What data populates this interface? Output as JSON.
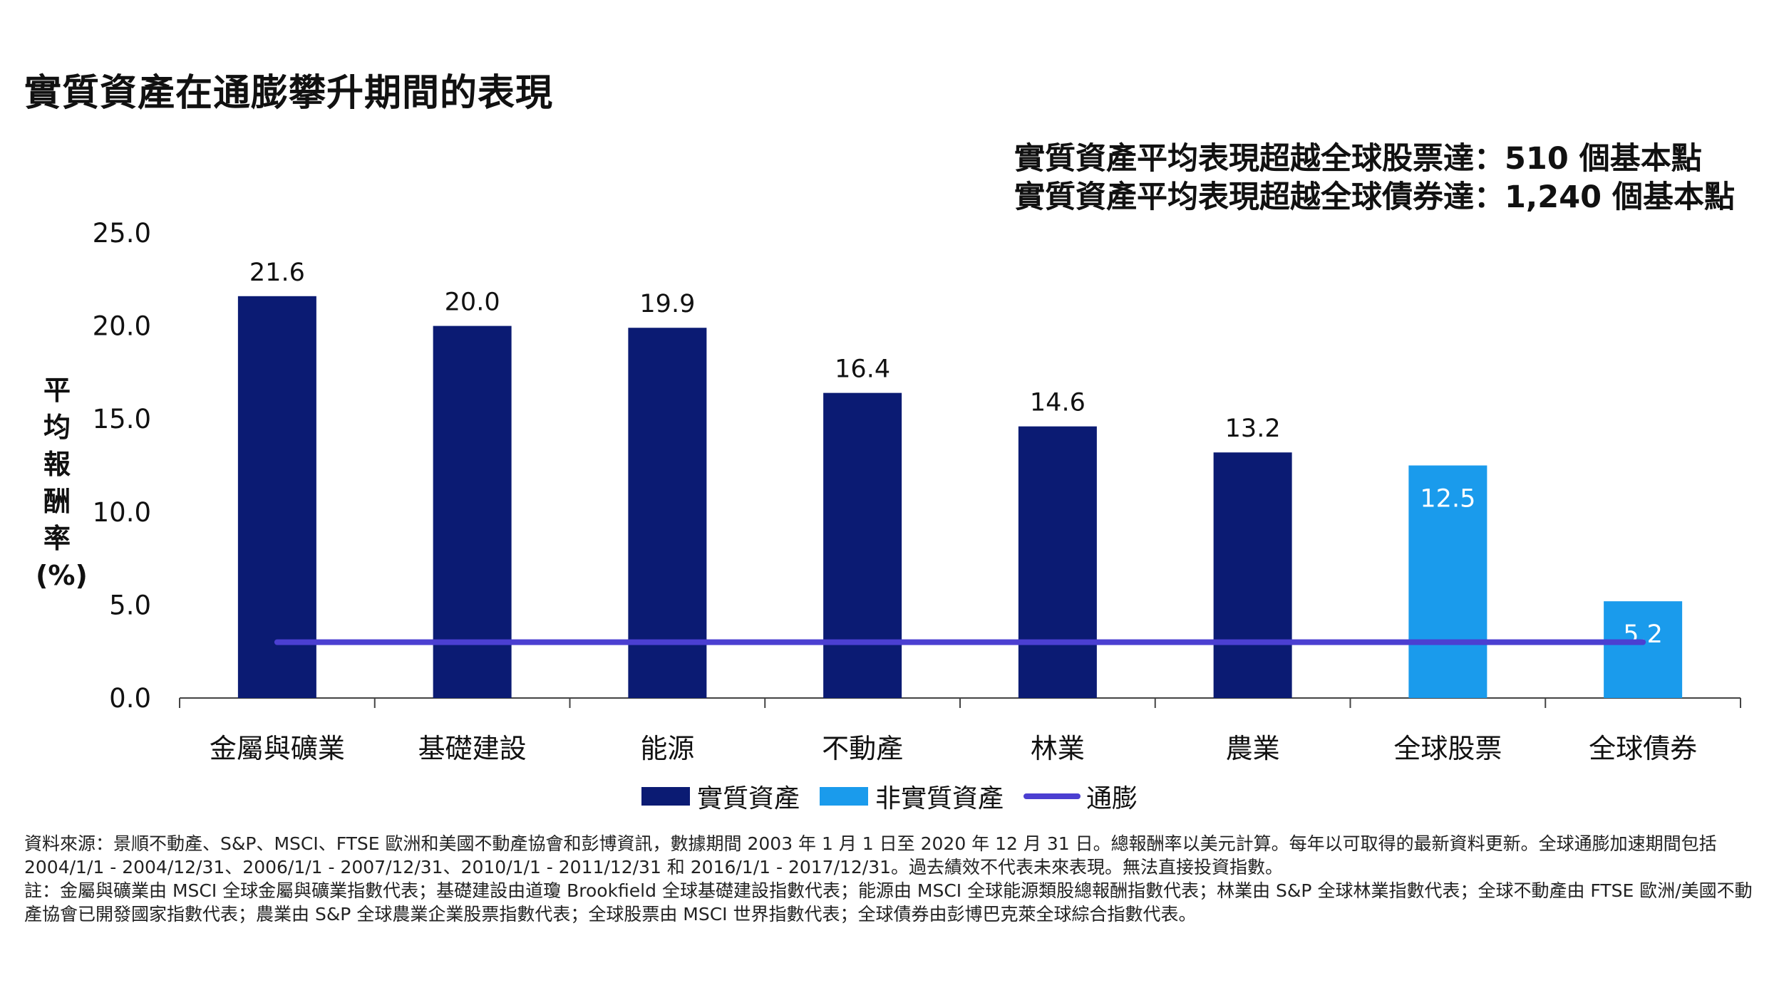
{
  "title": "實質資產在通膨攀升期間的表現",
  "callout": [
    "實質資產平均表現超越全球股票達：510 個基本點",
    "實質資產平均表現超越全球債券達：1,240 個基本點"
  ],
  "colors": {
    "real_assets": "#0b1b73",
    "non_real_assets": "#1a9bec",
    "inflation": "#4b3fd1"
  },
  "chart_data": {
    "type": "bar",
    "categories": [
      "金屬與礦業",
      "基礎建設",
      "能源",
      "不動產",
      "林業",
      "農業",
      "全球股票",
      "全球債券"
    ],
    "series": [
      {
        "name": "實質資產",
        "values": [
          21.6,
          20.0,
          19.9,
          16.4,
          14.6,
          13.2,
          null,
          null
        ],
        "labels": [
          "21.6",
          "20.0",
          "19.9",
          "16.4",
          "14.6",
          "13.2",
          "",
          ""
        ]
      },
      {
        "name": "非實質資產",
        "values": [
          null,
          null,
          null,
          null,
          null,
          null,
          12.5,
          5.2
        ],
        "labels": [
          "",
          "",
          "",
          "",
          "",
          "",
          "12.5",
          "5.2"
        ]
      },
      {
        "name": "通膨",
        "type": "line",
        "value": 3.0
      }
    ],
    "ylabel": "平均報酬率(%)",
    "ylim": [
      0,
      25
    ],
    "yticks": [
      "0.0",
      "5.0",
      "10.0",
      "15.0",
      "20.0",
      "25.0"
    ],
    "grid": false,
    "legend": "bottom"
  },
  "legend": {
    "real": "實質資產",
    "non_real": "非實質資產",
    "inflation": "通膨"
  },
  "footnote": [
    "資料來源：景順不動產、S&P、MSCI、FTSE 歐洲和美國不動產協會和彭博資訊，數據期間 2003 年 1 月 1 日至 2020 年 12 月 31 日。總報酬率以美元計算。每年以可取得的最新資料更新。全球通膨加速期間包括 2004/1/1 - 2004/12/31、2006/1/1 - 2007/12/31、2010/1/1 - 2011/12/31 和 2016/1/1 - 2017/12/31。過去績效不代表未來表現。無法直接投資指數。",
    "註：金屬與礦業由 MSCI 全球金屬與礦業指數代表；基礎建設由道瓊 Brookfield 全球基礎建設指數代表；能源由 MSCI 全球能源類股總報酬指數代表；林業由 S&P 全球林業指數代表；全球不動產由 FTSE 歐洲/美國不動產協會已開發國家指數代表；農業由 S&P 全球農業企業股票指數代表；全球股票由 MSCI 世界指數代表；全球債券由彭博巴克萊全球綜合指數代表。"
  ]
}
